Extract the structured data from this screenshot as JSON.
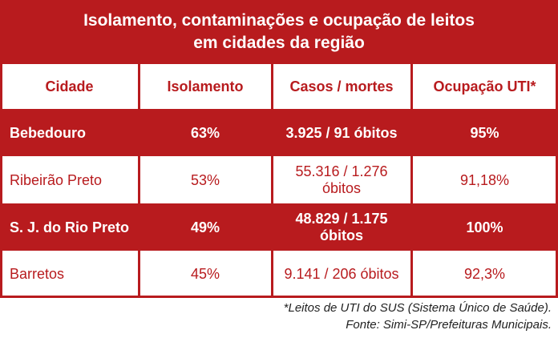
{
  "title": {
    "line1": "Isolamento, contaminações e ocupação de leitos",
    "line2": "em cidades da região"
  },
  "headers": [
    "Cidade",
    "Isolamento",
    "Casos / mortes",
    "Ocupação UTI*"
  ],
  "rows": [
    {
      "city": "Bebedouro",
      "isolation": "63%",
      "cases": "3.925 / 91 óbitos",
      "icu": "95%"
    },
    {
      "city": "Ribeirão Preto",
      "isolation": "53%",
      "cases": "55.316  / 1.276 óbitos",
      "icu": "91,18%"
    },
    {
      "city": "S. J. do Rio Preto",
      "isolation": "49%",
      "cases": "48.829 / 1.175 óbitos",
      "icu": "100%"
    },
    {
      "city": "Barretos",
      "isolation": "45%",
      "cases": "9.141 / 206 óbitos",
      "icu": "92,3%"
    }
  ],
  "notes": {
    "footnote": "*Leitos de UTI do SUS (Sistema Único de Saúde).",
    "source": "Fonte: Simi-SP/Prefeituras Municipais."
  },
  "colors": {
    "accent": "#b81b1e",
    "text_dark": "#222222",
    "background": "#ffffff"
  }
}
